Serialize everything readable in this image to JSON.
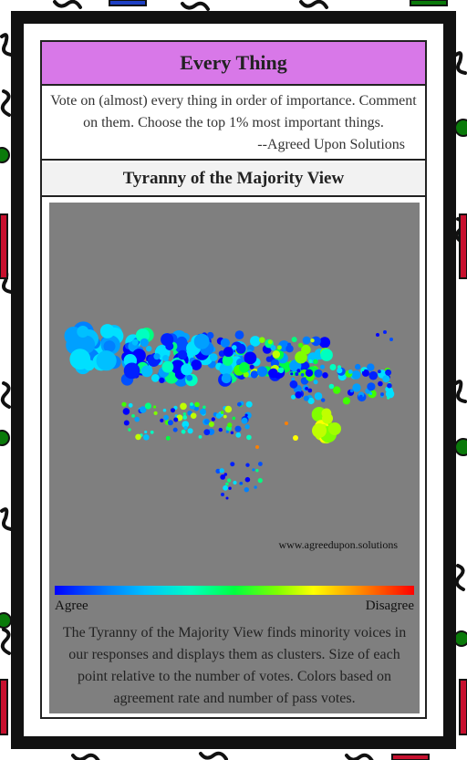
{
  "card": {
    "title": "Every Thing",
    "description": "Vote on (almost) every thing in order of importance. Comment on them. Choose the top 1% most important things.",
    "signature": "--Agreed Upon Solutions"
  },
  "view": {
    "header": "Tyranny of the Majority View",
    "watermark": "www.agreedupon.solutions",
    "scale_left": "Agree",
    "scale_right": "Disagree",
    "description": "The Tyranny of the Majority View finds minority voices in our responses and displays them as clusters. Size of each point relative to the number of votes. Colors based on agreement rate and number of pass votes."
  },
  "colors": {
    "title_bg": "#d878e8",
    "viz_bg": "#7f7f7f",
    "frame": "#111111",
    "scale": [
      "#0000ff",
      "#00c0ff",
      "#00ff40",
      "#ffff00",
      "#ff0000"
    ]
  }
}
